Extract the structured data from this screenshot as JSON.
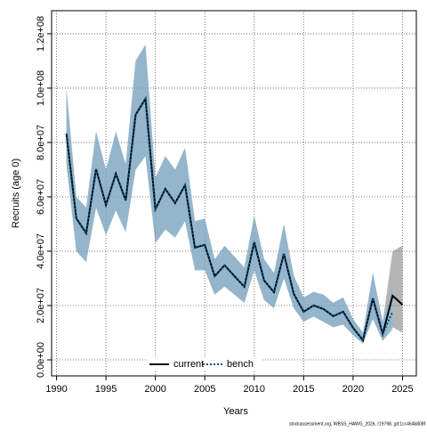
{
  "chart_data": {
    "type": "line",
    "xlabel": "Years",
    "ylabel": "Recruits (age 0)",
    "footnote": "stockassessment.org, WBSS_HAWG_2026, r19798, git:1cc464b808f",
    "x": [
      1991,
      1992,
      1993,
      1994,
      1995,
      1996,
      1997,
      1998,
      1999,
      2000,
      2001,
      2002,
      2003,
      2004,
      2005,
      2006,
      2007,
      2008,
      2009,
      2010,
      2011,
      2012,
      2013,
      2014,
      2015,
      2016,
      2017,
      2018,
      2019,
      2020,
      2021,
      2022,
      2023,
      2024,
      2025
    ],
    "series": [
      {
        "name": "current",
        "color": "#000000",
        "band_color": "rgba(120,120,120,0.55)",
        "dash": false,
        "values": [
          83300000,
          52100000,
          46600000,
          70200000,
          57000000,
          68500000,
          58700000,
          90200000,
          96100000,
          55400000,
          62900000,
          57700000,
          64300000,
          41300000,
          42300000,
          30800000,
          34800000,
          30800000,
          26900000,
          43300000,
          29200000,
          24900000,
          39000000,
          24300000,
          17700000,
          20000000,
          18700000,
          16100000,
          17700000,
          11800000,
          7200000,
          22600000,
          9500000,
          23600000,
          20300000
        ],
        "lower": [
          72000000,
          40000000,
          36000000,
          56000000,
          46000000,
          55000000,
          47000000,
          70000000,
          75000000,
          43000000,
          48000000,
          45000000,
          51000000,
          33000000,
          33000000,
          24000000,
          27000000,
          24000000,
          21000000,
          33000000,
          22000000,
          19000000,
          30000000,
          19000000,
          14000000,
          16000000,
          14000000,
          12000000,
          13000000,
          9000000,
          6000000,
          15000000,
          7000000,
          12000000,
          10000000
        ],
        "upper": [
          100000000,
          60000000,
          56000000,
          84000000,
          70000000,
          84000000,
          72000000,
          110000000,
          116000000,
          67000000,
          75000000,
          70000000,
          78000000,
          51000000,
          52000000,
          37000000,
          42000000,
          38000000,
          34000000,
          53000000,
          37000000,
          32000000,
          50000000,
          31000000,
          23000000,
          25000000,
          24000000,
          21000000,
          23000000,
          15000000,
          10000000,
          32000000,
          14000000,
          40000000,
          42000000
        ]
      },
      {
        "name": "bench",
        "color": "#0b4f7a",
        "band_color": "rgba(120,180,220,0.55)",
        "dash": true,
        "values": [
          83300000,
          52100000,
          46600000,
          70200000,
          57000000,
          68500000,
          58700000,
          90200000,
          96100000,
          55400000,
          62900000,
          57700000,
          64300000,
          41300000,
          42300000,
          30800000,
          34800000,
          30800000,
          26900000,
          43300000,
          29200000,
          24900000,
          39000000,
          24300000,
          17700000,
          20000000,
          18700000,
          16100000,
          17700000,
          11800000,
          7200000,
          22600000,
          9500000,
          17700000,
          null
        ],
        "lower": [
          72000000,
          40000000,
          36000000,
          56000000,
          46000000,
          55000000,
          47000000,
          70000000,
          75000000,
          43000000,
          48000000,
          45000000,
          51000000,
          33000000,
          33000000,
          24000000,
          27000000,
          24000000,
          21000000,
          33000000,
          22000000,
          19000000,
          30000000,
          19000000,
          14000000,
          16000000,
          14000000,
          12000000,
          13000000,
          9000000,
          6000000,
          15000000,
          7000000,
          11000000,
          null
        ],
        "upper": [
          100000000,
          60000000,
          56000000,
          84000000,
          70000000,
          84000000,
          72000000,
          110000000,
          116000000,
          67000000,
          75000000,
          70000000,
          78000000,
          51000000,
          52000000,
          37000000,
          42000000,
          38000000,
          34000000,
          53000000,
          37000000,
          32000000,
          50000000,
          31000000,
          23000000,
          25000000,
          24000000,
          21000000,
          23000000,
          15000000,
          10000000,
          32000000,
          14000000,
          27000000,
          null
        ]
      }
    ],
    "xlim": [
      1989.5,
      2026.4
    ],
    "xticks": [
      1990,
      1995,
      2000,
      2005,
      2010,
      2015,
      2020,
      2025
    ],
    "ylim": [
      -5900000,
      128500000
    ],
    "yticks": [
      {
        "value": 0,
        "label": "0.0e+00"
      },
      {
        "value": 20000000,
        "label": "2.0e+07"
      },
      {
        "value": 40000000,
        "label": "4.0e+07"
      },
      {
        "value": 60000000,
        "label": "6.0e+07"
      },
      {
        "value": 80000000,
        "label": "8.0e+07"
      },
      {
        "value": 100000000,
        "label": "1.0e+08"
      },
      {
        "value": 120000000,
        "label": "1.2e+08"
      }
    ],
    "grid": true,
    "legend": "bottom"
  }
}
